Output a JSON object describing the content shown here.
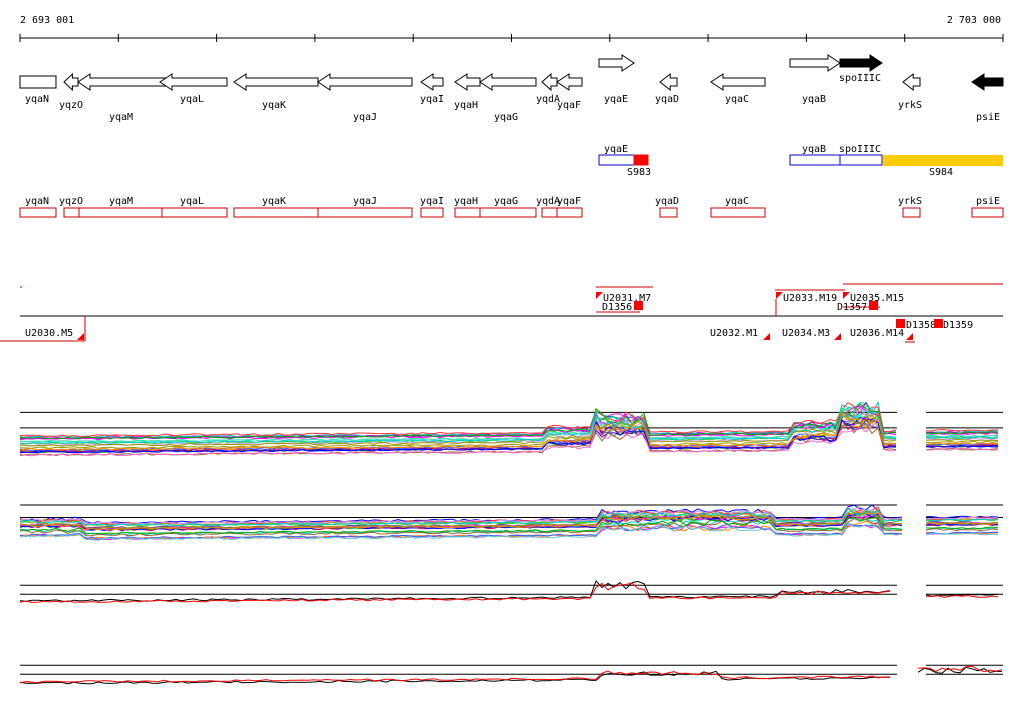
{
  "ruler": {
    "start_label": "2 693 001",
    "end_label": "2 703 000"
  },
  "colors": {
    "gene_outline": "#000000",
    "gene_filled": "#000000",
    "operon_outline": "#0000cc",
    "promoter_fill": "#ff0000",
    "segment_yellow": "#ffcc00",
    "annotation_red": "#cc0000",
    "trace_black": "#000000",
    "trace_red": "#ff0000"
  },
  "genes": [
    {
      "label": "yqaN",
      "strand": "+",
      "filled": false
    },
    {
      "label": "yqzO",
      "strand": "-",
      "filled": false
    },
    {
      "label": "yqaM",
      "strand": "-",
      "filled": false
    },
    {
      "label": "yqaL",
      "strand": "-",
      "filled": false
    },
    {
      "label": "yqaK",
      "strand": "-",
      "filled": false
    },
    {
      "label": "yqaJ",
      "strand": "-",
      "filled": false
    },
    {
      "label": "yqaI",
      "strand": "-",
      "filled": false
    },
    {
      "label": "yqaH",
      "strand": "-",
      "filled": false
    },
    {
      "label": "yqaG",
      "strand": "-",
      "filled": false
    },
    {
      "label": "yqdA",
      "strand": "-",
      "filled": false
    },
    {
      "label": "yqaF",
      "strand": "-",
      "filled": false
    },
    {
      "label": "yqaE",
      "strand": "+",
      "filled": false
    },
    {
      "label": "yqaD",
      "strand": "-",
      "filled": false
    },
    {
      "label": "yqaC",
      "strand": "-",
      "filled": false
    },
    {
      "label": "yqaB",
      "strand": "+",
      "filled": false
    },
    {
      "label": "spoIIIC",
      "strand": "+",
      "filled": true
    },
    {
      "label": "yrkS",
      "strand": "-",
      "filled": false
    },
    {
      "label": "psiE",
      "strand": "-",
      "filled": true
    }
  ],
  "operons": [
    {
      "label": "yqaE"
    },
    {
      "label": "yqaB"
    },
    {
      "label": "spoIIIC"
    }
  ],
  "segments": [
    {
      "label": "S983"
    },
    {
      "label": "S984"
    }
  ],
  "transcripts": [
    {
      "label": "yqaN"
    },
    {
      "label": "yqzO"
    },
    {
      "label": "yqaM"
    },
    {
      "label": "yqaL"
    },
    {
      "label": "yqaK"
    },
    {
      "label": "yqaJ"
    },
    {
      "label": "yqaI"
    },
    {
      "label": "yqaH"
    },
    {
      "label": "yqaG"
    },
    {
      "label": "yqdA"
    },
    {
      "label": "yqaF"
    },
    {
      "label": "yqaD"
    },
    {
      "label": "yqaC"
    },
    {
      "label": "yrkS"
    },
    {
      "label": "psiE"
    }
  ],
  "upshifts": [
    {
      "label": "U2030.M5"
    },
    {
      "label": "U2031.M7"
    },
    {
      "label": "U2032.M1"
    },
    {
      "label": "U2033.M19"
    },
    {
      "label": "U2034.M3"
    },
    {
      "label": "U2035.M15"
    },
    {
      "label": "U2036.M14"
    }
  ],
  "downshifts": [
    {
      "label": "D1356"
    },
    {
      "label": "D1357"
    },
    {
      "label": "D1358"
    },
    {
      "label": "D1359"
    }
  ]
}
